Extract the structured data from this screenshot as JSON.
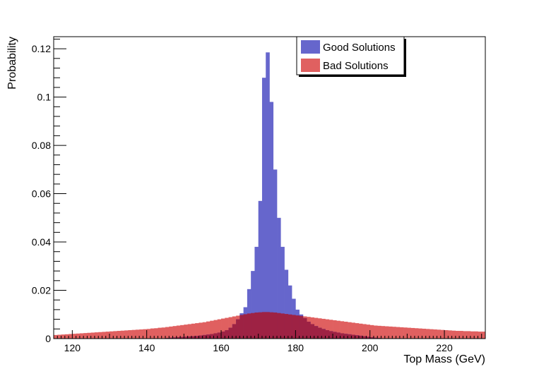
{
  "chart_data": {
    "type": "histogram",
    "title": "",
    "xlabel": "Top Mass (GeV)",
    "ylabel": "Probability",
    "xlim": [
      115,
      231
    ],
    "ylim": [
      0,
      0.125
    ],
    "x_ticks": [
      120,
      140,
      160,
      180,
      200,
      220
    ],
    "y_ticks": [
      0,
      0.02,
      0.04,
      0.06,
      0.08,
      0.1,
      0.12
    ],
    "x_tick_labels": [
      "120",
      "140",
      "160",
      "180",
      "200",
      "220"
    ],
    "y_tick_labels": [
      "0",
      "0.02",
      "0.04",
      "0.06",
      "0.08",
      "0.1",
      "0.12"
    ],
    "legend_position": "top-center",
    "grid": false,
    "bin_width": 1,
    "series": [
      {
        "name": "Good Solutions",
        "color": "#6666cc",
        "bins": [
          [
            145,
            0.0003
          ],
          [
            146,
            0.0004
          ],
          [
            147,
            0.0005
          ],
          [
            148,
            0.0006
          ],
          [
            149,
            0.0007
          ],
          [
            150,
            0.0008
          ],
          [
            151,
            0.0009
          ],
          [
            152,
            0.001
          ],
          [
            153,
            0.0011
          ],
          [
            154,
            0.0013
          ],
          [
            155,
            0.0015
          ],
          [
            156,
            0.0017
          ],
          [
            157,
            0.0019
          ],
          [
            158,
            0.0022
          ],
          [
            159,
            0.0025
          ],
          [
            160,
            0.0029
          ],
          [
            161,
            0.0035
          ],
          [
            162,
            0.0045
          ],
          [
            163,
            0.006
          ],
          [
            164,
            0.008
          ],
          [
            165,
            0.0105
          ],
          [
            166,
            0.013
          ],
          [
            167,
            0.0205
          ],
          [
            168,
            0.028
          ],
          [
            169,
            0.038
          ],
          [
            170,
            0.057
          ],
          [
            171,
            0.108
          ],
          [
            172,
            0.1185
          ],
          [
            173,
            0.098
          ],
          [
            174,
            0.07
          ],
          [
            175,
            0.05
          ],
          [
            176,
            0.038
          ],
          [
            177,
            0.0285
          ],
          [
            178,
            0.022
          ],
          [
            179,
            0.0165
          ],
          [
            180,
            0.012
          ],
          [
            181,
            0.01
          ],
          [
            182,
            0.0085
          ],
          [
            183,
            0.007
          ],
          [
            184,
            0.006
          ],
          [
            185,
            0.0052
          ],
          [
            186,
            0.0045
          ],
          [
            187,
            0.004
          ],
          [
            188,
            0.0035
          ],
          [
            189,
            0.0031
          ],
          [
            190,
            0.0028
          ],
          [
            191,
            0.0025
          ],
          [
            192,
            0.0022
          ],
          [
            193,
            0.002
          ],
          [
            194,
            0.0018
          ],
          [
            195,
            0.0016
          ],
          [
            196,
            0.0014
          ],
          [
            197,
            0.0012
          ],
          [
            198,
            0.001
          ],
          [
            199,
            0.0008
          ],
          [
            200,
            0.0006
          ],
          [
            201,
            0.0004
          ],
          [
            202,
            0.0003
          ]
        ]
      },
      {
        "name": "Bad Solutions",
        "color": "#e06060",
        "bins": [
          [
            115,
            0.0015
          ],
          [
            116,
            0.0016
          ],
          [
            117,
            0.0017
          ],
          [
            118,
            0.0018
          ],
          [
            119,
            0.0019
          ],
          [
            120,
            0.002
          ],
          [
            121,
            0.0021
          ],
          [
            122,
            0.0022
          ],
          [
            123,
            0.0023
          ],
          [
            124,
            0.0024
          ],
          [
            125,
            0.0025
          ],
          [
            126,
            0.0026
          ],
          [
            127,
            0.0027
          ],
          [
            128,
            0.0028
          ],
          [
            129,
            0.0029
          ],
          [
            130,
            0.003
          ],
          [
            131,
            0.0031
          ],
          [
            132,
            0.0032
          ],
          [
            133,
            0.0033
          ],
          [
            134,
            0.0034
          ],
          [
            135,
            0.0035
          ],
          [
            136,
            0.0036
          ],
          [
            137,
            0.0037
          ],
          [
            138,
            0.0038
          ],
          [
            139,
            0.0039
          ],
          [
            140,
            0.004
          ],
          [
            141,
            0.0042
          ],
          [
            142,
            0.0043
          ],
          [
            143,
            0.0045
          ],
          [
            144,
            0.0046
          ],
          [
            145,
            0.0048
          ],
          [
            146,
            0.005
          ],
          [
            147,
            0.0052
          ],
          [
            148,
            0.0054
          ],
          [
            149,
            0.0056
          ],
          [
            150,
            0.0058
          ],
          [
            151,
            0.006
          ],
          [
            152,
            0.0062
          ],
          [
            153,
            0.0064
          ],
          [
            154,
            0.0066
          ],
          [
            155,
            0.0068
          ],
          [
            156,
            0.0071
          ],
          [
            157,
            0.0074
          ],
          [
            158,
            0.0077
          ],
          [
            159,
            0.008
          ],
          [
            160,
            0.0083
          ],
          [
            161,
            0.0086
          ],
          [
            162,
            0.0089
          ],
          [
            163,
            0.0092
          ],
          [
            164,
            0.0095
          ],
          [
            165,
            0.0098
          ],
          [
            166,
            0.0101
          ],
          [
            167,
            0.0104
          ],
          [
            168,
            0.0106
          ],
          [
            169,
            0.0108
          ],
          [
            170,
            0.0109
          ],
          [
            171,
            0.011
          ],
          [
            172,
            0.011
          ],
          [
            173,
            0.0109
          ],
          [
            174,
            0.0108
          ],
          [
            175,
            0.0106
          ],
          [
            176,
            0.0104
          ],
          [
            177,
            0.0102
          ],
          [
            178,
            0.01
          ],
          [
            179,
            0.0098
          ],
          [
            180,
            0.0096
          ],
          [
            181,
            0.0094
          ],
          [
            182,
            0.0092
          ],
          [
            183,
            0.009
          ],
          [
            184,
            0.0088
          ],
          [
            185,
            0.0086
          ],
          [
            186,
            0.0084
          ],
          [
            187,
            0.0082
          ],
          [
            188,
            0.008
          ],
          [
            189,
            0.0078
          ],
          [
            190,
            0.0076
          ],
          [
            191,
            0.0074
          ],
          [
            192,
            0.0072
          ],
          [
            193,
            0.007
          ],
          [
            194,
            0.0068
          ],
          [
            195,
            0.0066
          ],
          [
            196,
            0.0064
          ],
          [
            197,
            0.0062
          ],
          [
            198,
            0.006
          ],
          [
            199,
            0.0058
          ],
          [
            200,
            0.0056
          ],
          [
            201,
            0.0054
          ],
          [
            202,
            0.0053
          ],
          [
            203,
            0.0052
          ],
          [
            204,
            0.0051
          ],
          [
            205,
            0.005
          ],
          [
            206,
            0.0049
          ],
          [
            207,
            0.0048
          ],
          [
            208,
            0.0047
          ],
          [
            209,
            0.0046
          ],
          [
            210,
            0.0045
          ],
          [
            211,
            0.0044
          ],
          [
            212,
            0.0043
          ],
          [
            213,
            0.0042
          ],
          [
            214,
            0.0041
          ],
          [
            215,
            0.004
          ],
          [
            216,
            0.0039
          ],
          [
            217,
            0.0038
          ],
          [
            218,
            0.0037
          ],
          [
            219,
            0.0036
          ],
          [
            220,
            0.0035
          ],
          [
            221,
            0.0034
          ],
          [
            222,
            0.0033
          ],
          [
            223,
            0.0032
          ],
          [
            224,
            0.0032
          ],
          [
            225,
            0.0031
          ],
          [
            226,
            0.0031
          ],
          [
            227,
            0.003
          ],
          [
            228,
            0.003
          ],
          [
            229,
            0.0029
          ],
          [
            230,
            0.0029
          ]
        ]
      }
    ],
    "overlap_color": "#9e2244"
  }
}
